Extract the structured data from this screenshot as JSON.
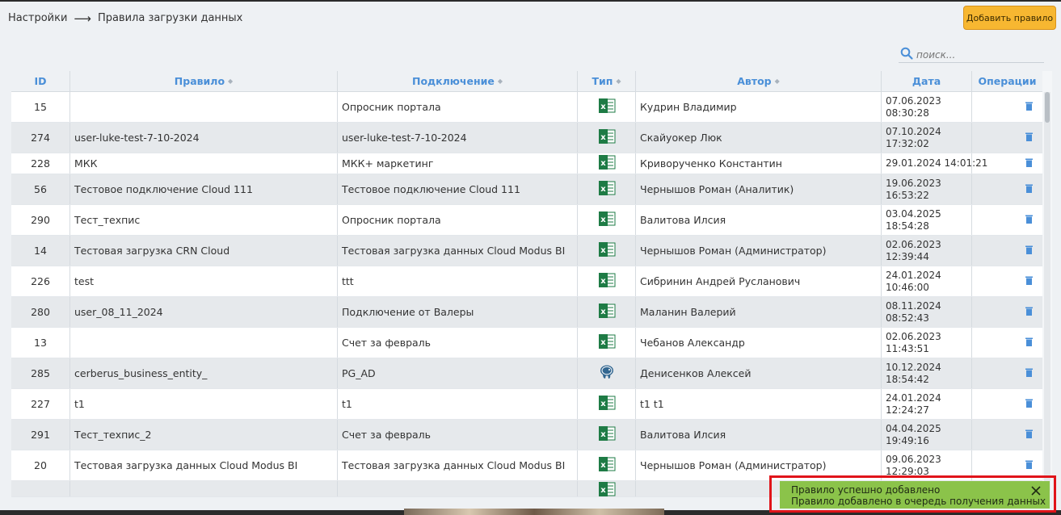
{
  "breadcrumb": {
    "parent": "Настройки",
    "separator": "⟶",
    "current": "Правила загрузки данных"
  },
  "header": {
    "add_button_label": "Добавить правило"
  },
  "search": {
    "placeholder": "поиск..."
  },
  "table": {
    "columns": {
      "id": "ID",
      "rule": "Правило",
      "connection": "Подключение",
      "type": "Тип",
      "author": "Автор",
      "date": "Дата",
      "operations": "Операции"
    },
    "rows": [
      {
        "id": "15",
        "rule": "",
        "connection": "Опросник портала",
        "type_icon": "excel-icon",
        "author": "Кудрин Владимир",
        "date": "07.06.2023",
        "time": "08:30:28"
      },
      {
        "id": "274",
        "rule": "user-luke-test-7-10-2024",
        "connection": "user-luke-test-7-10-2024",
        "type_icon": "excel-icon",
        "author": "Скайуокер Люк",
        "date": "07.10.2024",
        "time": "17:32:02"
      },
      {
        "id": "228",
        "rule": "МКК",
        "connection": "МКК+ маркетинг",
        "type_icon": "excel-icon",
        "author": "Криворученко Константин",
        "date": "29.01.2024 14:01:21",
        "time": ""
      },
      {
        "id": "56",
        "rule": "Тестовое подключение Cloud 111",
        "connection": "Тестовое подключение Cloud 111",
        "type_icon": "excel-icon",
        "author": "Чернышов Роман (Аналитик)",
        "date": "19.06.2023",
        "time": "16:53:22"
      },
      {
        "id": "290",
        "rule": "Тест_техпис",
        "connection": "Опросник портала",
        "type_icon": "excel-icon",
        "author": "Валитова Илсия",
        "date": "03.04.2025",
        "time": "18:54:28"
      },
      {
        "id": "14",
        "rule": "Тестовая загрузка CRN Cloud",
        "connection": "Тестовая загрузка данных Cloud Modus BI",
        "type_icon": "excel-icon",
        "author": "Чернышов Роман (Администратор)",
        "date": "02.06.2023",
        "time": "12:39:44"
      },
      {
        "id": "226",
        "rule": "test",
        "connection": "ttt",
        "type_icon": "excel-icon",
        "author": "Сибринин Андрей Русланович",
        "date": "24.01.2024",
        "time": "10:46:00"
      },
      {
        "id": "280",
        "rule": "user_08_11_2024",
        "connection": "Подключение от Валеры",
        "type_icon": "excel-icon",
        "author": "Маланин Валерий",
        "date": "08.11.2024",
        "time": "08:52:43"
      },
      {
        "id": "13",
        "rule": "",
        "connection": "Счет за февраль",
        "type_icon": "excel-icon",
        "author": "Чебанов Александр",
        "date": "02.06.2023",
        "time": "11:43:51"
      },
      {
        "id": "285",
        "rule": "cerberus_business_entity_",
        "connection": "PG_AD",
        "type_icon": "postgresql-icon",
        "author": "Денисенков Алексей",
        "date": "10.12.2024",
        "time": "18:54:42"
      },
      {
        "id": "227",
        "rule": "t1",
        "connection": "t1",
        "type_icon": "excel-icon",
        "author": "t1 t1",
        "date": "24.01.2024",
        "time": "12:24:27"
      },
      {
        "id": "291",
        "rule": "Тест_техпис_2",
        "connection": "Счет за февраль",
        "type_icon": "excel-icon",
        "author": "Валитова Илсия",
        "date": "04.04.2025",
        "time": "19:49:16"
      },
      {
        "id": "20",
        "rule": "Тестовая загрузка данных Cloud Modus BI",
        "connection": "Тестовая загрузка данных Cloud Modus BI",
        "type_icon": "excel-icon",
        "author": "Чернышов Роман (Администратор)",
        "date": "09.06.2023",
        "time": "12:29:03"
      }
    ]
  },
  "toast": {
    "line1": "Правило успешно добавлено",
    "line2": "Правило добавлено в очередь получения данных"
  },
  "colors": {
    "accent_blue": "#4a8fd8",
    "button_orange": "#f7b731",
    "toast_green": "#8bc34a",
    "highlight_red": "#e0141a",
    "excel_green": "#1e7b45"
  }
}
